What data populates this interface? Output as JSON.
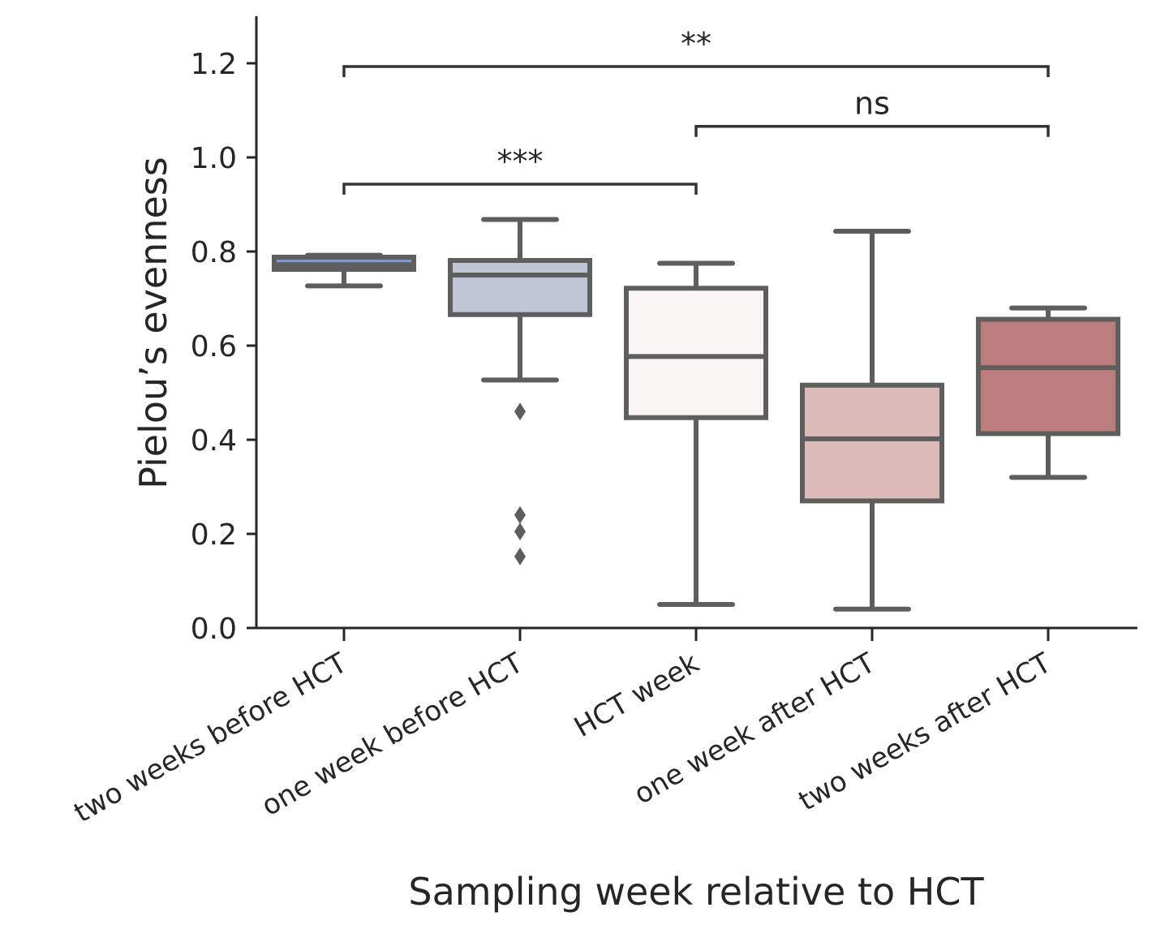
{
  "chart_data": {
    "type": "box",
    "xlabel": "Sampling week relative to HCT",
    "ylabel": "Pielou’s evenness",
    "ylim": [
      0,
      1.3
    ],
    "yticks": [
      0.0,
      0.2,
      0.4,
      0.6,
      0.8,
      1.0,
      1.2
    ],
    "ytick_labels": [
      "0.0",
      "0.2",
      "0.4",
      "0.6",
      "0.8",
      "1.0",
      "1.2"
    ],
    "categories": [
      "two weeks before HCT",
      "one week before HCT",
      "HCT week",
      "one week after HCT",
      "two weeks after HCT"
    ],
    "boxes": [
      {
        "whisker_low": 0.727,
        "q1": 0.762,
        "median": 0.772,
        "q3": 0.788,
        "whisker_high": 0.792,
        "outliers": [],
        "color": "#8099cc"
      },
      {
        "whisker_low": 0.527,
        "q1": 0.666,
        "median": 0.75,
        "q3": 0.781,
        "whisker_high": 0.868,
        "outliers": [
          0.46,
          0.24,
          0.205,
          0.152
        ],
        "color": "#bfc6d6"
      },
      {
        "whisker_low": 0.05,
        "q1": 0.447,
        "median": 0.577,
        "q3": 0.722,
        "whisker_high": 0.775,
        "outliers": [],
        "color": "#f9f5f4"
      },
      {
        "whisker_low": 0.04,
        "q1": 0.27,
        "median": 0.402,
        "q3": 0.516,
        "whisker_high": 0.843,
        "outliers": [],
        "color": "#dbbcbb"
      },
      {
        "whisker_low": 0.32,
        "q1": 0.413,
        "median": 0.553,
        "q3": 0.656,
        "whisker_high": 0.68,
        "outliers": [],
        "color": "#bb7e7d"
      }
    ],
    "significance": [
      {
        "from": 0,
        "to": 4,
        "y": 1.193,
        "label": "**"
      },
      {
        "from": 2,
        "to": 4,
        "y": 1.066,
        "label": "ns"
      },
      {
        "from": 0,
        "to": 2,
        "y": 0.943,
        "label": "***"
      }
    ]
  }
}
